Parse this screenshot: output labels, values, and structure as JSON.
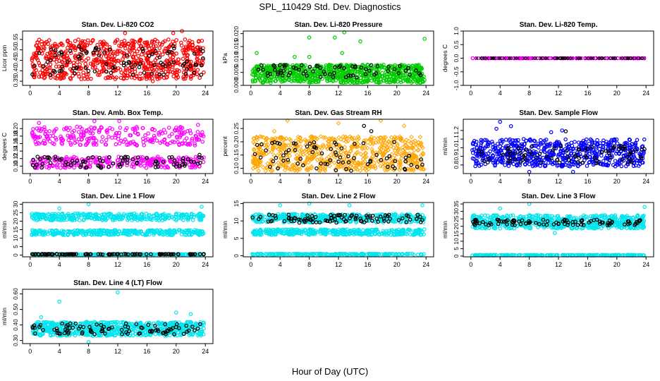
{
  "page": {
    "title": "SPL_110429  Std. Dev. Diagnostics",
    "xlabel": "Hour of Day (UTC)"
  },
  "colors": {
    "black": "#000000",
    "red": "#ff0000",
    "green": "#00cc00",
    "magenta": "#ff00ff",
    "orange": "#ffa500",
    "blue": "#0000ff",
    "cyan": "#00e5ee"
  },
  "chart_data": [
    {
      "type": "scatter",
      "title": "Stan. Dev. Li-820 CO2",
      "ylabel": "Licor ppm",
      "xlim": [
        0,
        24
      ],
      "ylim": [
        0.33,
        0.59
      ],
      "xticks": [
        0,
        4,
        8,
        12,
        16,
        20,
        24
      ],
      "yticks": [
        0.35,
        0.4,
        0.45,
        0.5,
        0.55
      ],
      "ytick_labels": [
        "0.35",
        "0.40",
        "0.45",
        "0.50",
        "0.55"
      ],
      "series": [
        {
          "color": "red",
          "marker": "circle",
          "n": 700,
          "bands": [
            [
              0.36,
              0.55
            ]
          ],
          "extras": [
            [
              13.0,
              0.58
            ],
            [
              19.6,
              0.58
            ],
            [
              20.8,
              0.59
            ],
            [
              7.0,
              0.36
            ],
            [
              16.8,
              0.35
            ]
          ]
        },
        {
          "color": "black",
          "marker": "circle",
          "n": 95,
          "bands": [
            [
              0.38,
              0.52
            ]
          ]
        }
      ]
    },
    {
      "type": "scatter",
      "title": "Stan. Dev. Li-820 Pressure",
      "ylabel": "kPa",
      "xlim": [
        0,
        24
      ],
      "ylim": [
        0,
        0.021
      ],
      "xticks": [
        0,
        4,
        8,
        12,
        16,
        20,
        24
      ],
      "yticks": [
        0,
        0.005,
        0.01,
        0.015,
        0.02
      ],
      "ytick_labels": [
        "0.000",
        "0.005",
        "0.010",
        "0.015",
        "0.020"
      ],
      "series": [
        {
          "color": "green",
          "marker": "circle",
          "n": 750,
          "bands": [
            [
              0.001,
              0.008
            ]
          ],
          "extras": [
            [
              12.8,
              0.0205
            ],
            [
              8.0,
              0.0185
            ],
            [
              11.5,
              0.0185
            ],
            [
              23.8,
              0.018
            ],
            [
              15.0,
              0.017
            ],
            [
              0.8,
              0.0125
            ],
            [
              8.0,
              0.011
            ],
            [
              12.5,
              0.0125
            ],
            [
              6.0,
              0.011
            ]
          ]
        },
        {
          "color": "black",
          "marker": "circle",
          "n": 70,
          "bands": [
            [
              0.003,
              0.008
            ]
          ]
        }
      ]
    },
    {
      "type": "scatter",
      "title": "Stan. Dev. Li-820 Temp.",
      "ylabel": "degrees C",
      "xlim": [
        0,
        24
      ],
      "ylim": [
        -1,
        1
      ],
      "xticks": [
        0,
        4,
        8,
        12,
        16,
        20,
        24
      ],
      "yticks": [
        -1.0,
        -0.5,
        0.0,
        0.5,
        1.0
      ],
      "ytick_labels": [
        "-1.0",
        "-0.5",
        "0.0",
        "0.5",
        "1.0"
      ],
      "series": [
        {
          "color": "magenta",
          "marker": "circle",
          "n": 160,
          "bands": [
            [
              0,
              0
            ]
          ]
        },
        {
          "color": "black",
          "marker": "cross",
          "n": 70,
          "bands": [
            [
              0,
              0
            ]
          ]
        }
      ]
    },
    {
      "type": "scatter",
      "title": "Stan. Dev. Amb. Box Temp.",
      "ylabel": "degrees C",
      "xlim": [
        0,
        24
      ],
      "ylim": [
        0.08,
        0.225
      ],
      "xticks": [
        0,
        4,
        8,
        12,
        16,
        20,
        24
      ],
      "yticks": [
        0.1,
        0.12,
        0.14,
        0.16,
        0.18,
        0.2
      ],
      "ytick_labels": [
        "0.10",
        "0.12",
        "0.14",
        "0.16",
        "0.18",
        "0.20"
      ],
      "series": [
        {
          "color": "magenta",
          "marker": "circle",
          "n": 520,
          "bands": [
            [
              0.155,
              0.205
            ],
            [
              0.095,
              0.125
            ]
          ],
          "extras": [
            [
              8.8,
              0.22
            ],
            [
              12.2,
              0.22
            ],
            [
              1.2,
              0.215
            ],
            [
              23.0,
              0.21
            ]
          ]
        },
        {
          "color": "black",
          "marker": "circle",
          "n": 85,
          "bands": [
            [
              0.095,
              0.125
            ]
          ],
          "extras": [
            [
              23.2,
              0.13
            ]
          ]
        }
      ]
    },
    {
      "type": "scatter",
      "title": "Stan. Dev. Gas Stream RH",
      "ylabel": "percent",
      "xlim": [
        0,
        24
      ],
      "ylim": [
        0.08,
        0.285
      ],
      "xticks": [
        0,
        4,
        8,
        12,
        16,
        20,
        24
      ],
      "yticks": [
        0.1,
        0.15,
        0.2,
        0.25
      ],
      "ytick_labels": [
        "0.10",
        "0.15",
        "0.20",
        "0.25"
      ],
      "series": [
        {
          "color": "orange",
          "marker": "diamond",
          "n": 650,
          "bands": [
            [
              0.09,
              0.22
            ]
          ],
          "extras": [
            [
              5.0,
              0.28
            ],
            [
              17.8,
              0.28
            ],
            [
              12.0,
              0.27
            ],
            [
              3.2,
              0.24
            ],
            [
              21.0,
              0.26
            ]
          ]
        },
        {
          "color": "black",
          "marker": "circle",
          "n": 75,
          "bands": [
            [
              0.09,
              0.2
            ]
          ],
          "extras": [
            [
              15.5,
              0.26
            ],
            [
              16.5,
              0.24
            ]
          ]
        }
      ]
    },
    {
      "type": "scatter",
      "title": "Stan. Dev. Sample Flow",
      "ylabel": "ml/min",
      "xlim": [
        0,
        24
      ],
      "ylim": [
        0.7,
        1.33
      ],
      "xticks": [
        0,
        4,
        8,
        12,
        16,
        20,
        24
      ],
      "yticks": [
        0.8,
        0.9,
        1.0,
        1.1,
        1.2
      ],
      "ytick_labels": [
        "0.8",
        "0.9",
        "1.0",
        "1.1",
        "1.2"
      ],
      "series": [
        {
          "color": "blue",
          "marker": "circle",
          "n": 650,
          "bands": [
            [
              0.78,
              1.1
            ]
          ],
          "extras": [
            [
              4.0,
              1.3
            ],
            [
              5.5,
              1.25
            ],
            [
              3.5,
              1.22
            ],
            [
              12.5,
              1.2
            ],
            [
              11.0,
              1.18
            ],
            [
              8.0,
              0.72
            ],
            [
              14.0,
              0.72
            ]
          ]
        },
        {
          "color": "black",
          "marker": "circle",
          "n": 85,
          "bands": [
            [
              0.82,
              1.02
            ]
          ],
          "extras": [
            [
              13.0,
              1.19
            ]
          ]
        }
      ]
    },
    {
      "type": "scatter",
      "title": "Stan. Dev. Line 1 Flow",
      "ylabel": "ml/min",
      "xlim": [
        0,
        24
      ],
      "ylim": [
        -1,
        31
      ],
      "xticks": [
        0,
        4,
        8,
        12,
        16,
        20,
        24
      ],
      "yticks": [
        0,
        5,
        10,
        15,
        20,
        25,
        30
      ],
      "ytick_labels": [
        "0",
        "5",
        "10",
        "15",
        "20",
        "25",
        "30"
      ],
      "series": [
        {
          "color": "cyan",
          "marker": "circle",
          "n": 330,
          "bands": [
            [
              20.5,
              24.5
            ]
          ],
          "extras": [
            [
              8.0,
              30
            ],
            [
              23.5,
              28.5
            ],
            [
              4.0,
              27.5
            ]
          ]
        },
        {
          "color": "cyan",
          "marker": "circle",
          "n": 330,
          "bands": [
            [
              11.8,
              14.8
            ]
          ]
        },
        {
          "color": "cyan",
          "marker": "circle",
          "n": 200,
          "bands": [
            [
              0.3,
              0.6
            ]
          ]
        },
        {
          "color": "black",
          "marker": "circle",
          "n": 100,
          "bands": [
            [
              0.4,
              0.7
            ]
          ]
        }
      ]
    },
    {
      "type": "scatter",
      "title": "Stan. Dev. Line 2 Flow",
      "ylabel": "ml/min",
      "xlim": [
        0,
        24
      ],
      "ylim": [
        -0.3,
        15.3
      ],
      "xticks": [
        0,
        4,
        8,
        12,
        16,
        20,
        24
      ],
      "yticks": [
        0,
        5,
        10,
        15
      ],
      "ytick_labels": [
        "0",
        "5",
        "10",
        "15"
      ],
      "series": [
        {
          "color": "cyan",
          "marker": "circle",
          "n": 420,
          "bands": [
            [
              9.6,
              12.0
            ]
          ],
          "extras": [
            [
              4.0,
              14.5
            ],
            [
              8.0,
              15.0
            ],
            [
              13.5,
              14.5
            ],
            [
              23.5,
              14.5
            ]
          ]
        },
        {
          "color": "cyan",
          "marker": "circle",
          "n": 380,
          "bands": [
            [
              6.0,
              7.6
            ]
          ]
        },
        {
          "color": "cyan",
          "marker": "circle",
          "n": 200,
          "bands": [
            [
              0.3,
              0.6
            ]
          ]
        },
        {
          "color": "black",
          "marker": "circle",
          "n": 95,
          "bands": [
            [
              9.5,
              11.8
            ]
          ]
        }
      ]
    },
    {
      "type": "scatter",
      "title": "Stan. Dev. Line 3 Flow",
      "ylabel": "ml/min",
      "xlim": [
        0,
        24
      ],
      "ylim": [
        -0.5,
        36
      ],
      "xticks": [
        0,
        4,
        8,
        12,
        16,
        20,
        24
      ],
      "yticks": [
        0,
        5,
        10,
        15,
        20,
        25,
        30,
        35
      ],
      "ytick_labels": [
        "0",
        "5",
        "10",
        "15",
        "20",
        "25",
        "30",
        "35"
      ],
      "series": [
        {
          "color": "cyan",
          "marker": "circle",
          "n": 560,
          "bands": [
            [
              18.5,
              27.5
            ]
          ],
          "extras": [
            [
              8.0,
              35
            ],
            [
              23.8,
              33
            ],
            [
              4.0,
              32
            ],
            [
              11.5,
              15.5
            ]
          ]
        },
        {
          "color": "cyan",
          "marker": "circle",
          "n": 220,
          "bands": [
            [
              0.4,
              0.8
            ]
          ]
        },
        {
          "color": "black",
          "marker": "circle",
          "n": 95,
          "bands": [
            [
              20.5,
              24.5
            ]
          ]
        }
      ]
    },
    {
      "type": "scatter",
      "title": "Stan. Dev. Line 4 (LT) Flow",
      "ylabel": "ml/min",
      "xlim": [
        0,
        24
      ],
      "ylim": [
        0.28,
        0.63
      ],
      "xticks": [
        0,
        4,
        8,
        12,
        16,
        20,
        24
      ],
      "yticks": [
        0.3,
        0.4,
        0.5,
        0.6
      ],
      "ytick_labels": [
        "0.30",
        "0.40",
        "0.50",
        "0.60"
      ],
      "series": [
        {
          "color": "cyan",
          "marker": "circle",
          "n": 650,
          "bands": [
            [
              0.33,
              0.42
            ]
          ],
          "extras": [
            [
              12.0,
              0.61
            ],
            [
              4.0,
              0.55
            ],
            [
              20.0,
              0.48
            ],
            [
              22.0,
              0.47
            ],
            [
              1.5,
              0.45
            ],
            [
              8.0,
              0.29
            ]
          ]
        },
        {
          "color": "black",
          "marker": "circle",
          "n": 90,
          "bands": [
            [
              0.34,
              0.41
            ]
          ]
        }
      ]
    }
  ]
}
